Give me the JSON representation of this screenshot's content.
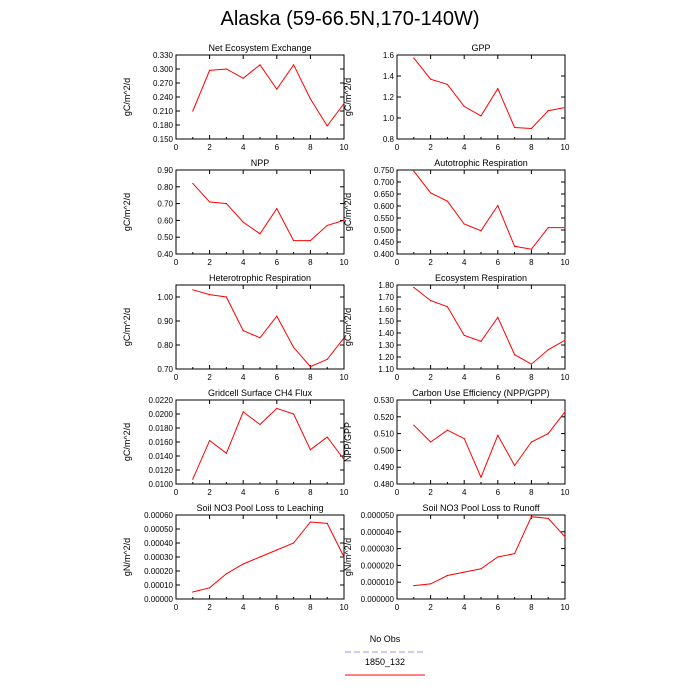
{
  "title": "Alaska (59-66.5N,170-140W)",
  "legend": {
    "items": [
      {
        "label": "No Obs",
        "color": "#9999ff",
        "dash": true
      },
      {
        "label": "1850_132",
        "color": "#ff0000",
        "dash": false
      }
    ]
  },
  "chart_data": [
    {
      "type": "line",
      "title": "Net Ecosystem Exchange",
      "xlabel": "",
      "ylabel": "gC/m^2/d",
      "xlim": [
        0,
        10
      ],
      "ylim": [
        0.15,
        0.33
      ],
      "xticks": [
        "0",
        "2",
        "4",
        "6",
        "8",
        "10"
      ],
      "yticks": [
        "0.150",
        "0.180",
        "0.210",
        "0.240",
        "0.270",
        "0.300",
        "0.330"
      ],
      "series": [
        {
          "x": [
            1,
            2,
            3,
            4,
            5,
            6,
            7,
            8,
            9,
            10
          ],
          "values": [
            0.21,
            0.297,
            0.3,
            0.28,
            0.309,
            0.257,
            0.309,
            0.236,
            0.178,
            0.226
          ]
        }
      ]
    },
    {
      "type": "line",
      "title": "GPP",
      "xlabel": "",
      "ylabel": "gC/m^2/d",
      "xlim": [
        0,
        10
      ],
      "ylim": [
        0.8,
        1.6
      ],
      "xticks": [
        "0",
        "2",
        "4",
        "6",
        "8",
        "10"
      ],
      "yticks": [
        "0.8",
        "1.0",
        "1.2",
        "1.4",
        "1.6"
      ],
      "series": [
        {
          "x": [
            1,
            2,
            3,
            4,
            5,
            6,
            7,
            8,
            9,
            10
          ],
          "values": [
            1.57,
            1.37,
            1.32,
            1.11,
            1.02,
            1.28,
            0.91,
            0.9,
            1.07,
            1.1
          ]
        }
      ]
    },
    {
      "type": "line",
      "title": "NPP",
      "xlabel": "",
      "ylabel": "gC/m^2/d",
      "xlim": [
        0,
        10
      ],
      "ylim": [
        0.4,
        0.9
      ],
      "xticks": [
        "0",
        "2",
        "4",
        "6",
        "8",
        "10"
      ],
      "yticks": [
        "0.40",
        "0.50",
        "0.60",
        "0.70",
        "0.80",
        "0.90"
      ],
      "series": [
        {
          "x": [
            1,
            2,
            3,
            4,
            5,
            6,
            7,
            8,
            9,
            10
          ],
          "values": [
            0.82,
            0.71,
            0.7,
            0.59,
            0.52,
            0.67,
            0.48,
            0.48,
            0.57,
            0.6
          ]
        }
      ]
    },
    {
      "type": "line",
      "title": "Autotrophic Respiration",
      "xlabel": "",
      "ylabel": "gC/m^2/d",
      "xlim": [
        0,
        10
      ],
      "ylim": [
        0.4,
        0.75
      ],
      "xticks": [
        "0",
        "2",
        "4",
        "6",
        "8",
        "10"
      ],
      "yticks": [
        "0.400",
        "0.450",
        "0.500",
        "0.550",
        "0.600",
        "0.650",
        "0.700",
        "0.750"
      ],
      "series": [
        {
          "x": [
            1,
            2,
            3,
            4,
            5,
            6,
            7,
            8,
            9,
            10
          ],
          "values": [
            0.745,
            0.655,
            0.62,
            0.525,
            0.497,
            0.602,
            0.432,
            0.42,
            0.51,
            0.51
          ]
        }
      ]
    },
    {
      "type": "line",
      "title": "Heterotrophic Respiration",
      "xlabel": "",
      "ylabel": "gC/m^2/d",
      "xlim": [
        0,
        10
      ],
      "ylim": [
        0.7,
        1.05
      ],
      "xticks": [
        "0",
        "2",
        "4",
        "6",
        "8",
        "10"
      ],
      "yticks": [
        "0.70",
        "0.80",
        "0.90",
        "1.00"
      ],
      "series": [
        {
          "x": [
            1,
            2,
            3,
            4,
            5,
            6,
            7,
            8,
            9,
            10
          ],
          "values": [
            1.03,
            1.01,
            1.0,
            0.86,
            0.83,
            0.92,
            0.79,
            0.71,
            0.74,
            0.83
          ]
        }
      ]
    },
    {
      "type": "line",
      "title": "Ecosystem Respiration",
      "xlabel": "",
      "ylabel": "gC/m^2/d",
      "xlim": [
        0,
        10
      ],
      "ylim": [
        1.1,
        1.8
      ],
      "xticks": [
        "0",
        "2",
        "4",
        "6",
        "8",
        "10"
      ],
      "yticks": [
        "1.10",
        "1.20",
        "1.30",
        "1.40",
        "1.50",
        "1.60",
        "1.70",
        "1.80"
      ],
      "series": [
        {
          "x": [
            1,
            2,
            3,
            4,
            5,
            6,
            7,
            8,
            9,
            10
          ],
          "values": [
            1.78,
            1.67,
            1.62,
            1.38,
            1.33,
            1.53,
            1.22,
            1.14,
            1.26,
            1.34
          ]
        }
      ]
    },
    {
      "type": "line",
      "title": "Gridcell Surface CH4 Flux",
      "xlabel": "",
      "ylabel": "gC/m^2/d",
      "xlim": [
        0,
        10
      ],
      "ylim": [
        0.01,
        0.022
      ],
      "xticks": [
        "0",
        "2",
        "4",
        "6",
        "8",
        "10"
      ],
      "yticks": [
        "0.0100",
        "0.0120",
        "0.0140",
        "0.0160",
        "0.0180",
        "0.0200",
        "0.0220"
      ],
      "series": [
        {
          "x": [
            1,
            2,
            3,
            4,
            5,
            6,
            7,
            8,
            9,
            10
          ],
          "values": [
            0.0107,
            0.0162,
            0.0144,
            0.0203,
            0.0185,
            0.0208,
            0.02,
            0.0149,
            0.0167,
            0.0135
          ]
        }
      ]
    },
    {
      "type": "line",
      "title": "Carbon Use Efficiency (NPP/GPP)",
      "xlabel": "",
      "ylabel": "NPP/GPP",
      "xlim": [
        0,
        10
      ],
      "ylim": [
        0.48,
        0.53
      ],
      "xticks": [
        "0",
        "2",
        "4",
        "6",
        "8",
        "10"
      ],
      "yticks": [
        "0.480",
        "0.490",
        "0.500",
        "0.510",
        "0.520",
        "0.530"
      ],
      "series": [
        {
          "x": [
            1,
            2,
            3,
            4,
            5,
            6,
            7,
            8,
            9,
            10
          ],
          "values": [
            0.515,
            0.505,
            0.512,
            0.507,
            0.484,
            0.509,
            0.491,
            0.505,
            0.51,
            0.523
          ]
        }
      ]
    },
    {
      "type": "line",
      "title": "Soil NO3 Pool Loss to Leaching",
      "xlabel": "",
      "ylabel": "gN/m^2/d",
      "xlim": [
        0,
        10
      ],
      "ylim": [
        0,
        0.0006
      ],
      "xticks": [
        "0",
        "2",
        "4",
        "6",
        "8",
        "10"
      ],
      "yticks": [
        "0.00000",
        "0.00010",
        "0.00020",
        "0.00030",
        "0.00040",
        "0.00050",
        "0.00060"
      ],
      "series": [
        {
          "x": [
            1,
            2,
            3,
            4,
            5,
            6,
            7,
            8,
            9,
            10
          ],
          "values": [
            5e-05,
            8e-05,
            0.00018,
            0.00025,
            0.0003,
            0.00035,
            0.0004,
            0.00055,
            0.00054,
            0.0003
          ]
        }
      ]
    },
    {
      "type": "line",
      "title": "Soil NO3 Pool Loss to Runoff",
      "xlabel": "",
      "ylabel": "gN/m^2/d",
      "xlim": [
        0,
        10
      ],
      "ylim": [
        0,
        5e-05
      ],
      "xticks": [
        "0",
        "2",
        "4",
        "6",
        "8",
        "10"
      ],
      "yticks": [
        "0.000000",
        "0.000010",
        "0.000020",
        "0.000030",
        "0.000040",
        "0.000050"
      ],
      "series": [
        {
          "x": [
            1,
            2,
            3,
            4,
            5,
            6,
            7,
            8,
            9,
            10
          ],
          "values": [
            8e-06,
            9e-06,
            1.4e-05,
            1.6e-05,
            1.8e-05,
            2.5e-05,
            2.7e-05,
            4.9e-05,
            4.8e-05,
            3.7e-05
          ]
        }
      ]
    }
  ]
}
